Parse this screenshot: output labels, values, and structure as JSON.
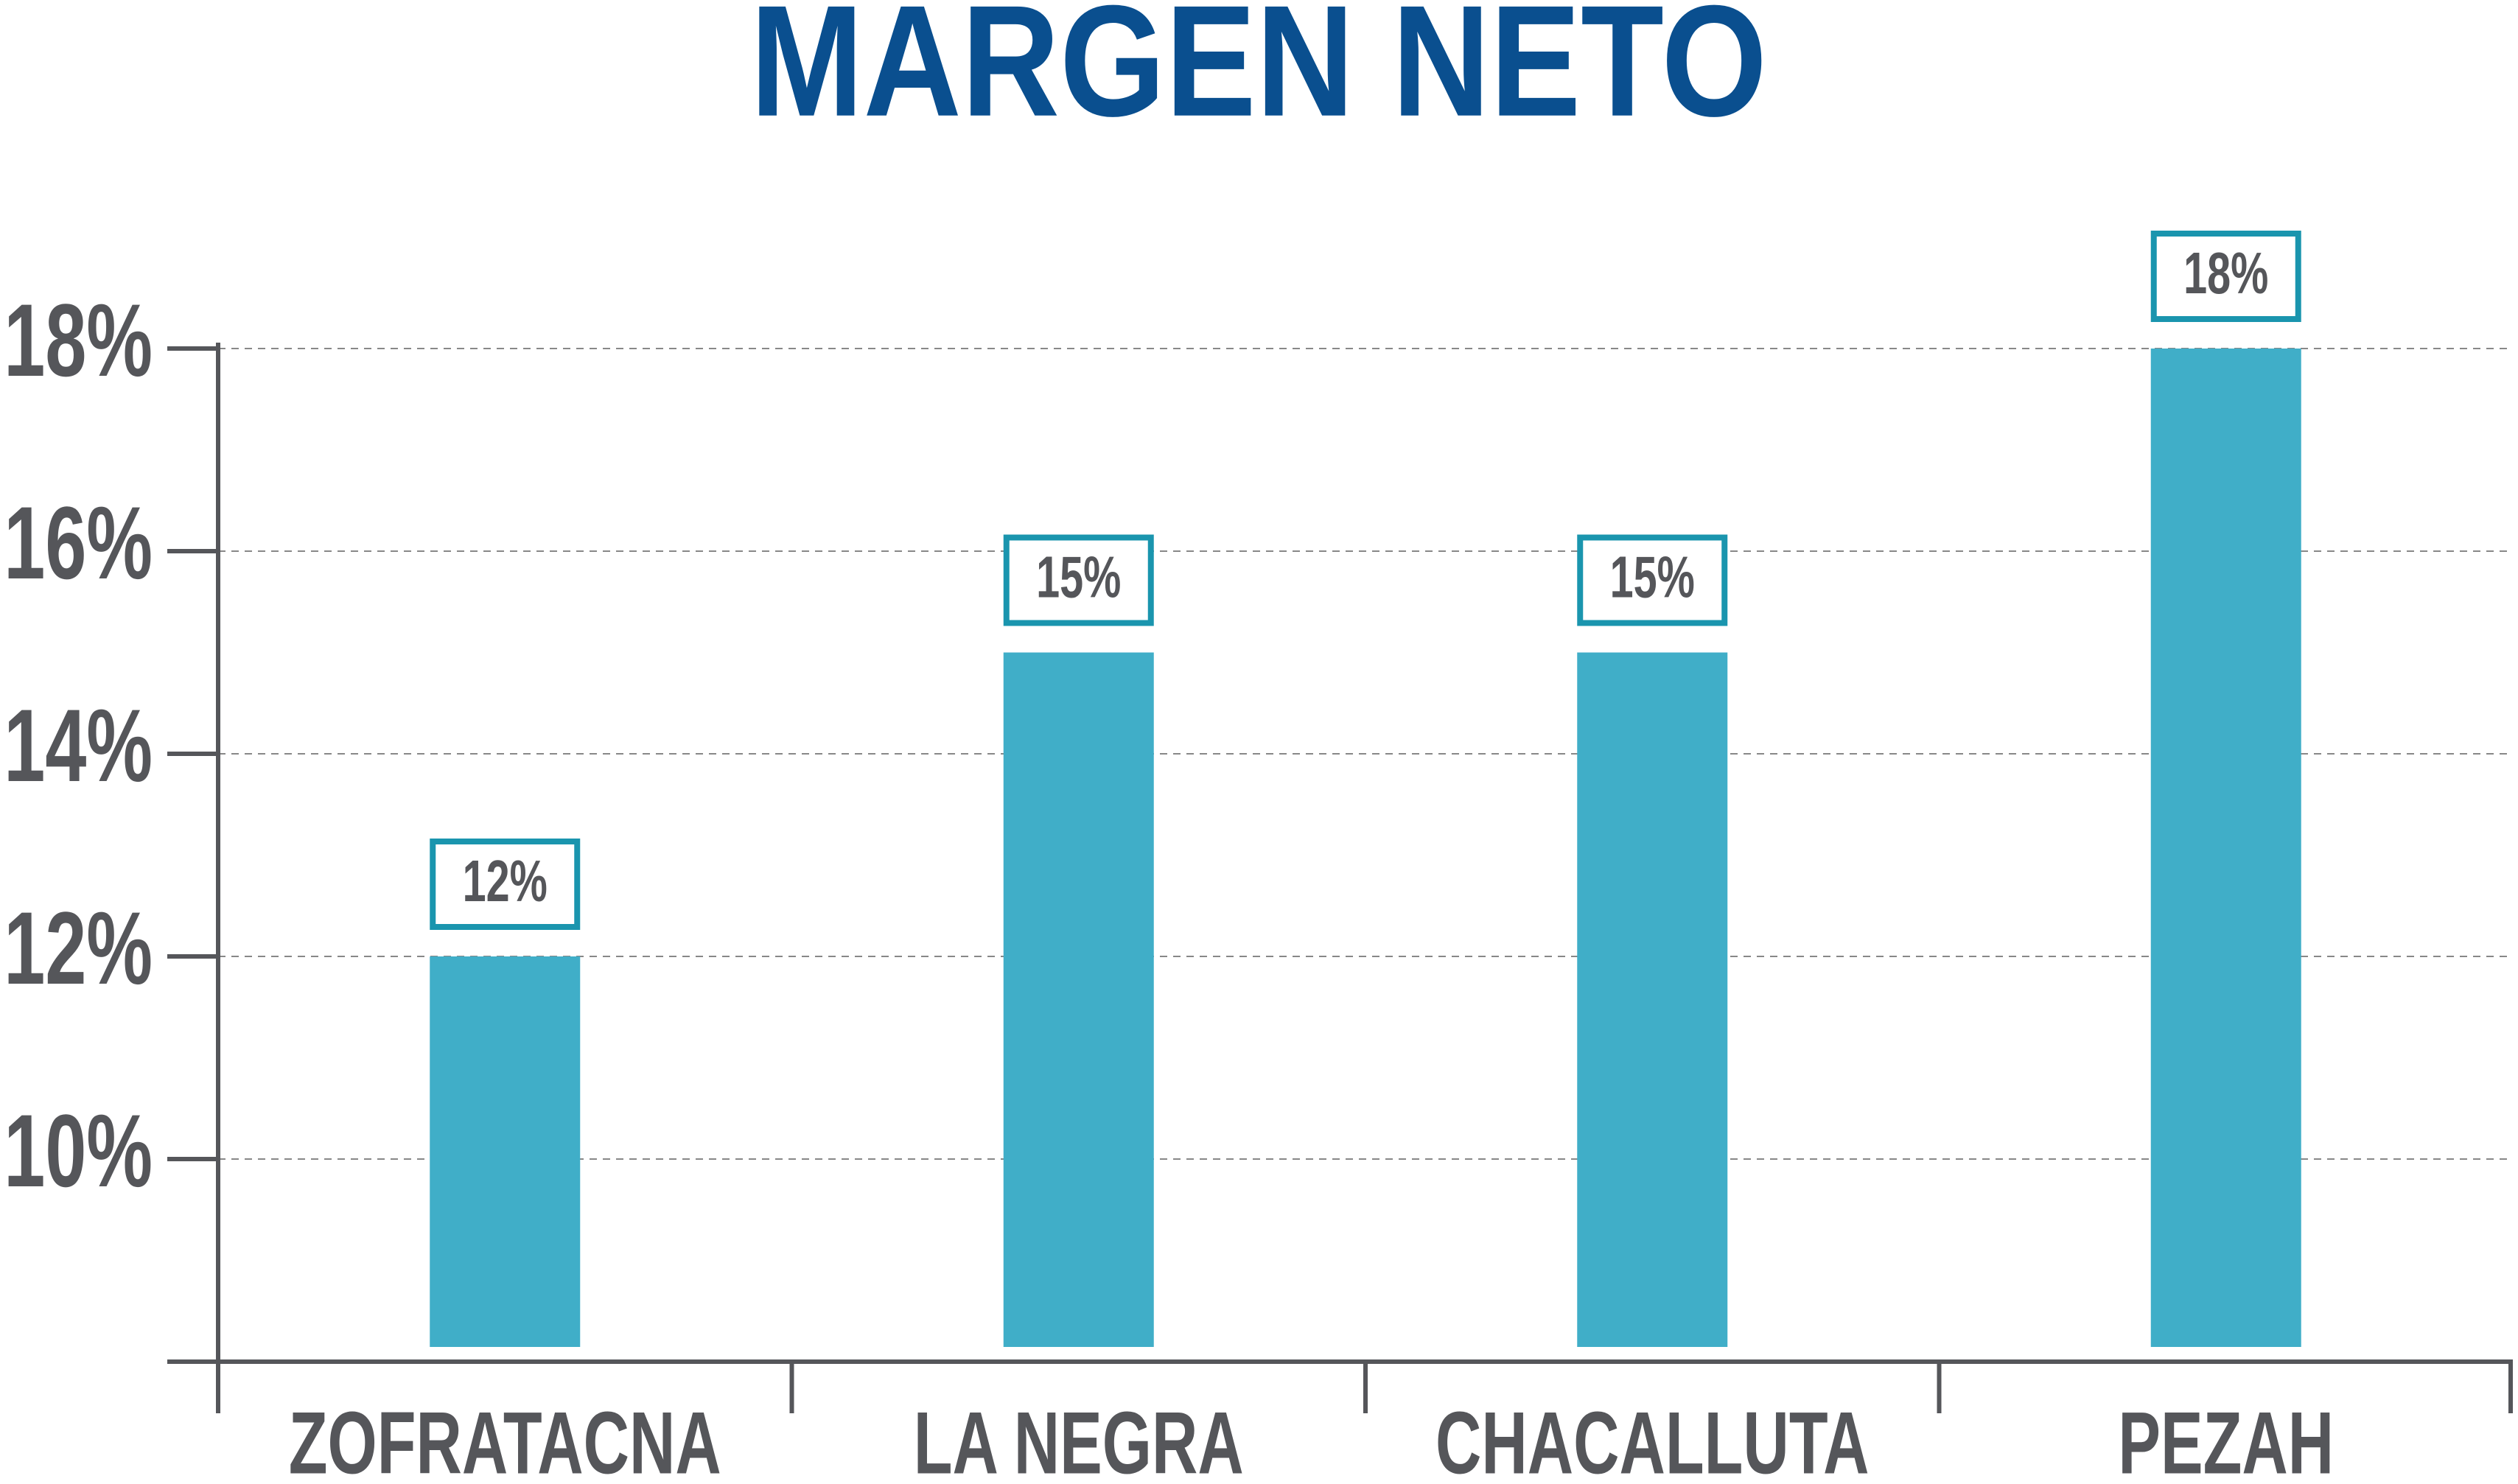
{
  "chart_data": {
    "type": "bar",
    "title": "MARGEN NETO",
    "categories": [
      "ZOFRATACNA",
      "LA NEGRA",
      "CHACALLUTA",
      "PEZAH"
    ],
    "values": [
      12,
      15,
      15,
      18
    ],
    "value_labels": [
      "12%",
      "15%",
      "15%",
      "18%"
    ],
    "color": "#40aec8",
    "ylim": [
      8,
      18
    ],
    "yticks": [
      {
        "value": 10,
        "label": "10%"
      },
      {
        "value": 12,
        "label": "12%"
      },
      {
        "value": 14,
        "label": "14%"
      },
      {
        "value": 16,
        "label": "16%"
      },
      {
        "value": 18,
        "label": "18%"
      }
    ],
    "grid": true
  }
}
